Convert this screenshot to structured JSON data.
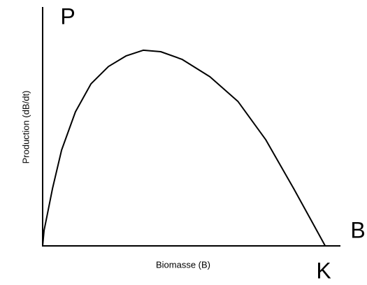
{
  "chart_data": {
    "type": "line",
    "x_label": "Biomasse (B)",
    "y_label": "Production (dB/dt)",
    "annotations": {
      "y_axis_symbol": "P",
      "x_axis_symbol": "B",
      "carrying_capacity": "K"
    },
    "x": [
      0,
      0.5,
      1.5,
      3.5,
      6.7,
      11.6,
      17.1,
      23.3,
      29.5,
      35.6,
      41.8,
      49.3,
      59.2,
      69.1,
      79.0,
      88.9,
      95.0,
      100
    ],
    "series": [
      {
        "color": "#000000",
        "values": [
          0,
          6.4,
          12.3,
          24.0,
          40.1,
          56.1,
          67.8,
          75.1,
          79.5,
          81.9,
          81.3,
          78.1,
          70.8,
          60.5,
          44.4,
          23.9,
          10.8,
          0
        ]
      }
    ],
    "xlim": [
      0,
      105.4
    ],
    "ylim": [
      0,
      100
    ]
  }
}
